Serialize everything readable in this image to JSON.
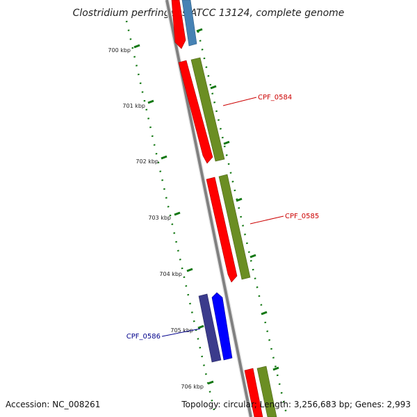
{
  "title": "Clostridium perfringens ATCC 13124, complete genome",
  "footer": {
    "accession": "Accession: NC_008261",
    "summary": "Topology: circular; Length: 3,256,683 bp; Genes: 2,993"
  },
  "ticks": [
    "700 kbp",
    "701 kbp",
    "702 kbp",
    "703 kbp",
    "704 kbp",
    "705 kbp",
    "706 kbp"
  ],
  "gene_labels": [
    {
      "id": "CPF_0584",
      "text": "CPF_0584",
      "color": "#cc0000"
    },
    {
      "id": "CPF_0585",
      "text": "CPF_0585",
      "color": "#cc0000"
    },
    {
      "id": "CPF_0586",
      "text": "CPF_0586",
      "color": "#00008b"
    }
  ],
  "colors": {
    "backbone": "#808080",
    "tick": "#117711",
    "cds_red": "#ff0000",
    "cds_olive": "#6b8e23",
    "cds_steel": "#4682b4",
    "cds_navy": "#3b3b8c",
    "cds_blue": "#0000ff"
  }
}
